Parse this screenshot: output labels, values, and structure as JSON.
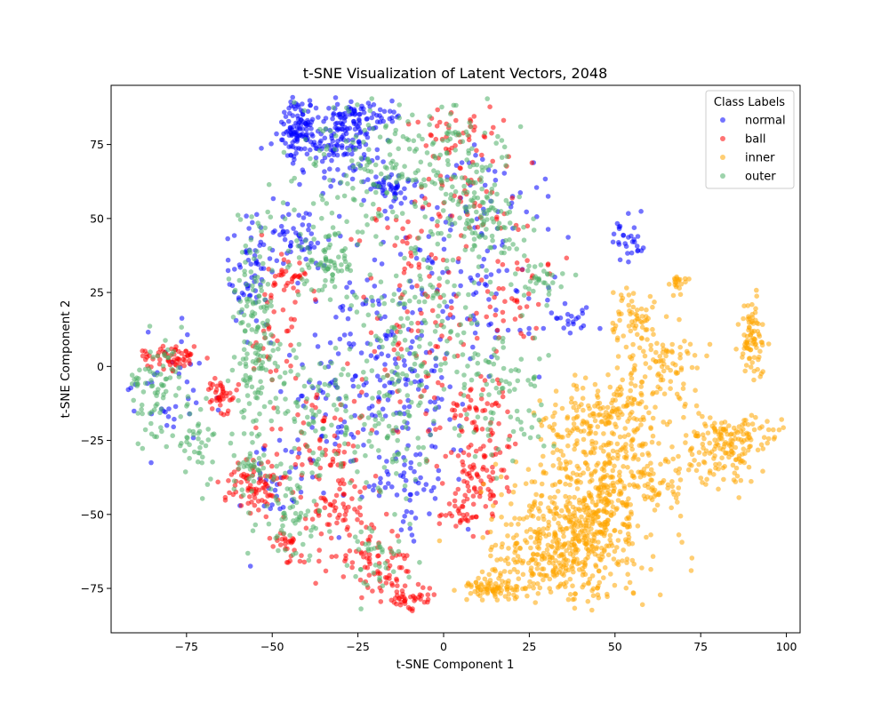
{
  "chart_data": {
    "type": "scatter",
    "title": "t-SNE Visualization of Latent Vectors, 2048",
    "xlabel": "t-SNE Component 1",
    "ylabel": "t-SNE Component 2",
    "xlim": [
      -97,
      104
    ],
    "ylim": [
      -90,
      95
    ],
    "xticks": [
      -75,
      -50,
      -25,
      0,
      25,
      50,
      75,
      100
    ],
    "yticks": [
      -75,
      -50,
      -25,
      0,
      25,
      50,
      75
    ],
    "xtick_labels": [
      "−75",
      "−50",
      "−25",
      "0",
      "25",
      "50",
      "75",
      "100"
    ],
    "ytick_labels": [
      "−75",
      "−50",
      "−25",
      "0",
      "25",
      "50",
      "75"
    ],
    "grid": false,
    "legend": {
      "title": "Class Labels",
      "placement": "top-right"
    },
    "series": [
      {
        "name": "normal",
        "color": "#0000ff",
        "clusters": [
          {
            "x": -43,
            "y": 80,
            "sx": 3,
            "sy": 5,
            "n": 110
          },
          {
            "x": -30,
            "y": 75,
            "sx": 6,
            "sy": 6,
            "n": 120
          },
          {
            "x": -25,
            "y": 85,
            "sx": 5,
            "sy": 3,
            "n": 70
          },
          {
            "x": -16,
            "y": 60,
            "sx": 4,
            "sy": 3,
            "n": 50
          },
          {
            "x": -57,
            "y": 30,
            "sx": 3,
            "sy": 10,
            "n": 60
          },
          {
            "x": -43,
            "y": 45,
            "sx": 4,
            "sy": 6,
            "n": 50
          },
          {
            "x": -80,
            "y": -10,
            "sx": 8,
            "sy": 10,
            "n": 40
          },
          {
            "x": -30,
            "y": -10,
            "sx": 8,
            "sy": 15,
            "n": 80
          },
          {
            "x": -10,
            "y": -5,
            "sx": 8,
            "sy": 15,
            "n": 80
          },
          {
            "x": 10,
            "y": 25,
            "sx": 10,
            "sy": 15,
            "n": 80
          },
          {
            "x": -20,
            "y": 20,
            "sx": 8,
            "sy": 15,
            "n": 50
          },
          {
            "x": -10,
            "y": -40,
            "sx": 6,
            "sy": 10,
            "n": 50
          },
          {
            "x": 10,
            "y": 60,
            "sx": 10,
            "sy": 10,
            "n": 40
          },
          {
            "x": 53,
            "y": 42,
            "sx": 2,
            "sy": 5,
            "n": 30
          },
          {
            "x": 37,
            "y": 16,
            "sx": 3,
            "sy": 2,
            "n": 20
          },
          {
            "x": -50,
            "y": -40,
            "sx": 5,
            "sy": 8,
            "n": 30
          }
        ]
      },
      {
        "name": "ball",
        "color": "#ff0000",
        "clusters": [
          {
            "x": -80,
            "y": 3,
            "sx": 4,
            "sy": 2,
            "n": 60
          },
          {
            "x": -65,
            "y": -10,
            "sx": 2,
            "sy": 3,
            "n": 40
          },
          {
            "x": -55,
            "y": -40,
            "sx": 4,
            "sy": 5,
            "n": 80
          },
          {
            "x": -45,
            "y": -60,
            "sx": 3,
            "sy": 3,
            "n": 30
          },
          {
            "x": -30,
            "y": -50,
            "sx": 6,
            "sy": 10,
            "n": 80
          },
          {
            "x": -18,
            "y": -68,
            "sx": 4,
            "sy": 5,
            "n": 60
          },
          {
            "x": -10,
            "y": -78,
            "sx": 3,
            "sy": 2,
            "n": 40
          },
          {
            "x": 10,
            "y": -35,
            "sx": 5,
            "sy": 8,
            "n": 80
          },
          {
            "x": 5,
            "y": -50,
            "sx": 3,
            "sy": 3,
            "n": 30
          },
          {
            "x": 10,
            "y": -15,
            "sx": 5,
            "sy": 6,
            "n": 50
          },
          {
            "x": -35,
            "y": -25,
            "sx": 8,
            "sy": 10,
            "n": 60
          },
          {
            "x": -5,
            "y": 10,
            "sx": 10,
            "sy": 15,
            "n": 60
          },
          {
            "x": 10,
            "y": 60,
            "sx": 8,
            "sy": 12,
            "n": 60
          },
          {
            "x": -10,
            "y": 40,
            "sx": 6,
            "sy": 10,
            "n": 40
          },
          {
            "x": -45,
            "y": 30,
            "sx": 3,
            "sy": 3,
            "n": 30
          },
          {
            "x": -50,
            "y": 10,
            "sx": 4,
            "sy": 15,
            "n": 40
          },
          {
            "x": 0,
            "y": 80,
            "sx": 6,
            "sy": 5,
            "n": 30
          },
          {
            "x": 20,
            "y": 25,
            "sx": 6,
            "sy": 10,
            "n": 40
          }
        ]
      },
      {
        "name": "inner",
        "color": "#ffa500",
        "clusters": [
          {
            "x": 40,
            "y": -55,
            "sx": 10,
            "sy": 12,
            "n": 450
          },
          {
            "x": 48,
            "y": -38,
            "sx": 5,
            "sy": 10,
            "n": 150
          },
          {
            "x": 28,
            "y": -66,
            "sx": 8,
            "sy": 6,
            "n": 150
          },
          {
            "x": 15,
            "y": -75,
            "sx": 5,
            "sy": 2,
            "n": 80
          },
          {
            "x": 55,
            "y": -20,
            "sx": 5,
            "sy": 10,
            "n": 100
          },
          {
            "x": 45,
            "y": -15,
            "sx": 6,
            "sy": 6,
            "n": 80
          },
          {
            "x": 65,
            "y": 0,
            "sx": 4,
            "sy": 6,
            "n": 80
          },
          {
            "x": 55,
            "y": 15,
            "sx": 3,
            "sy": 5,
            "n": 60
          },
          {
            "x": 80,
            "y": -28,
            "sx": 6,
            "sy": 6,
            "n": 120
          },
          {
            "x": 88,
            "y": -22,
            "sx": 5,
            "sy": 3,
            "n": 60
          },
          {
            "x": 90,
            "y": 8,
            "sx": 2,
            "sy": 7,
            "n": 80
          },
          {
            "x": 69,
            "y": 28,
            "sx": 2,
            "sy": 2,
            "n": 20
          },
          {
            "x": 62,
            "y": -40,
            "sx": 4,
            "sy": 4,
            "n": 40
          },
          {
            "x": 35,
            "y": -20,
            "sx": 4,
            "sy": 6,
            "n": 40
          }
        ]
      },
      {
        "name": "outer",
        "color": "#4caf66",
        "clusters": [
          {
            "x": -84,
            "y": -10,
            "sx": 4,
            "sy": 10,
            "n": 80
          },
          {
            "x": -72,
            "y": -25,
            "sx": 3,
            "sy": 8,
            "n": 40
          },
          {
            "x": -55,
            "y": 10,
            "sx": 3,
            "sy": 20,
            "n": 150
          },
          {
            "x": -35,
            "y": 35,
            "sx": 5,
            "sy": 6,
            "n": 80
          },
          {
            "x": -25,
            "y": 70,
            "sx": 10,
            "sy": 12,
            "n": 110
          },
          {
            "x": 0,
            "y": 70,
            "sx": 10,
            "sy": 10,
            "n": 120
          },
          {
            "x": 10,
            "y": 50,
            "sx": 8,
            "sy": 8,
            "n": 100
          },
          {
            "x": -5,
            "y": 20,
            "sx": 12,
            "sy": 15,
            "n": 150
          },
          {
            "x": -35,
            "y": -15,
            "sx": 10,
            "sy": 12,
            "n": 120
          },
          {
            "x": -15,
            "y": -20,
            "sx": 6,
            "sy": 15,
            "n": 80
          },
          {
            "x": 15,
            "y": -10,
            "sx": 8,
            "sy": 10,
            "n": 80
          },
          {
            "x": -45,
            "y": -50,
            "sx": 6,
            "sy": 8,
            "n": 60
          },
          {
            "x": -20,
            "y": -65,
            "sx": 4,
            "sy": 6,
            "n": 40
          },
          {
            "x": 28,
            "y": 30,
            "sx": 4,
            "sy": 3,
            "n": 30
          },
          {
            "x": -55,
            "y": -35,
            "sx": 3,
            "sy": 5,
            "n": 30
          }
        ]
      }
    ]
  }
}
